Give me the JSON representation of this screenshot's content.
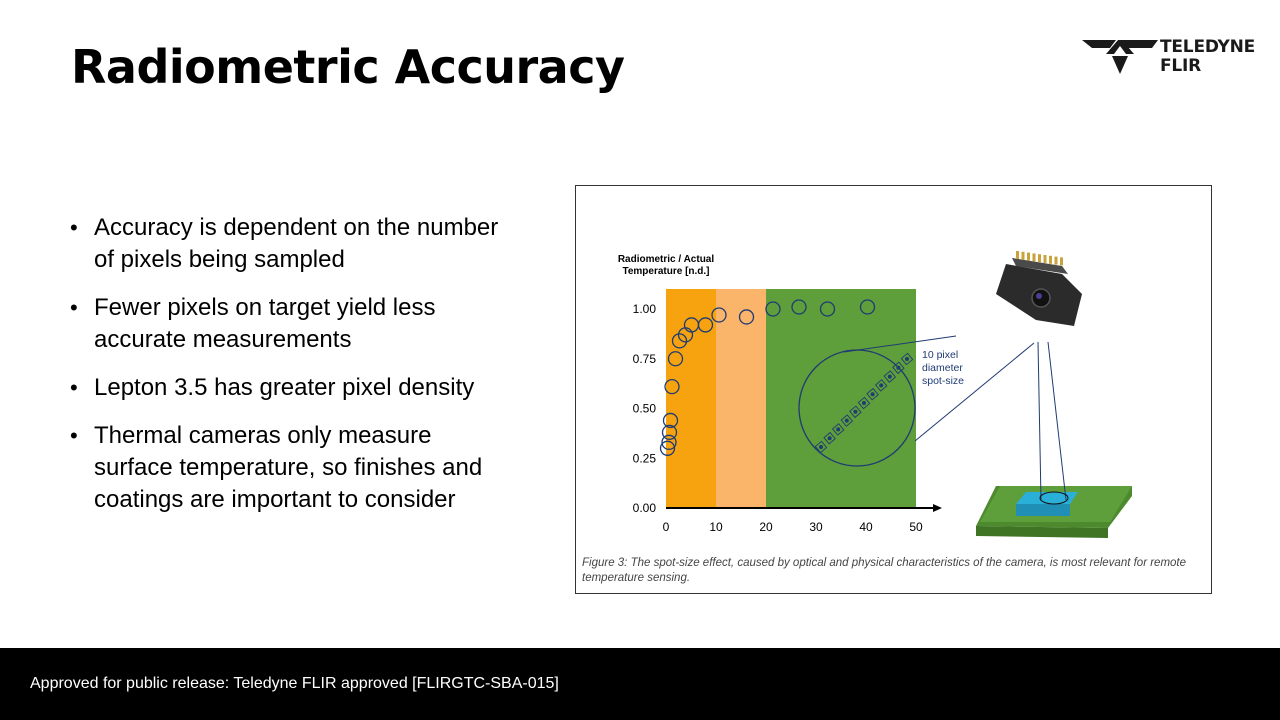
{
  "slide": {
    "title": "Radiometric Accuracy",
    "bullets": [
      "Accuracy is dependent on the number of pixels being sampled",
      "Fewer pixels on target yield less accurate measurements",
      "Lepton 3.5 has greater pixel density",
      "Thermal cameras only measure surface temperature, so finishes and coatings are important to consider"
    ]
  },
  "logo": {
    "line1": "TELEDYNE",
    "line2": "FLIR"
  },
  "footer": {
    "text": "Approved for public release: Teledyne FLIR approved [FLIRGTC-SBA-015]"
  },
  "figure": {
    "caption": "Figure 3: The spot-size effect, caused by optical and physical characteristics of the camera, is most relevant for remote temperature sensing.",
    "callout": [
      "10 pixel",
      "diameter",
      "spot-size"
    ]
  },
  "colors": {
    "zone1": "#f7a30f",
    "zone2": "#fbb56b",
    "zone3": "#5e9e3b",
    "marker": "#1f3b73",
    "board": "#5e9e3b",
    "spot": "#2ab0d8"
  },
  "chart_data": {
    "type": "scatter",
    "ylabel": [
      "Radiometric / Actual",
      "Temperature [n.d.]"
    ],
    "xlabel": "",
    "xlim": [
      0,
      50
    ],
    "ylim": [
      0,
      1
    ],
    "xticks": [
      "0",
      "10",
      "20",
      "30",
      "40",
      "50"
    ],
    "yticks": [
      "0.00",
      "0.25",
      "0.50",
      "0.75",
      "1.00"
    ],
    "zones": [
      {
        "from": 0,
        "to": 10
      },
      {
        "from": 10,
        "to": 20
      },
      {
        "from": 20,
        "to": 50
      }
    ],
    "points": [
      {
        "x": 0.3,
        "y": 0.3
      },
      {
        "x": 0.6,
        "y": 0.33
      },
      {
        "x": 0.7,
        "y": 0.38
      },
      {
        "x": 0.9,
        "y": 0.44
      },
      {
        "x": 1.2,
        "y": 0.61
      },
      {
        "x": 1.9,
        "y": 0.75
      },
      {
        "x": 2.7,
        "y": 0.84
      },
      {
        "x": 3.9,
        "y": 0.87
      },
      {
        "x": 5.1,
        "y": 0.92
      },
      {
        "x": 7.9,
        "y": 0.92
      },
      {
        "x": 10.6,
        "y": 0.97
      },
      {
        "x": 16.1,
        "y": 0.96
      },
      {
        "x": 21.4,
        "y": 1.0
      },
      {
        "x": 26.6,
        "y": 1.01
      },
      {
        "x": 32.3,
        "y": 1.0
      },
      {
        "x": 40.3,
        "y": 1.01
      }
    ]
  }
}
